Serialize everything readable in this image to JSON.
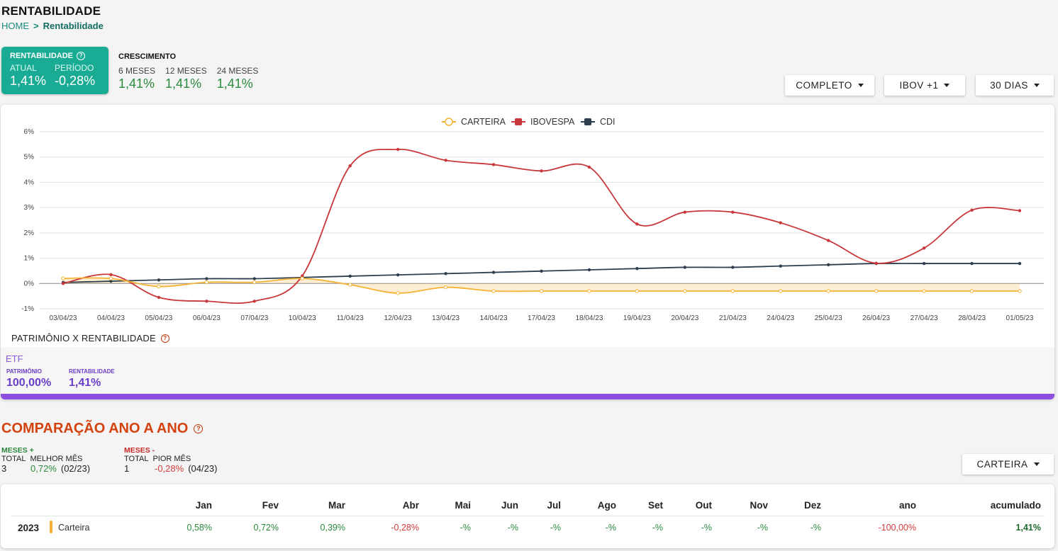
{
  "header": {
    "title": "RENTABILIDADE",
    "breadcrumb_home": "HOME",
    "breadcrumb_sep": ">",
    "breadcrumb_current": "Rentabilidade"
  },
  "rent_card": {
    "title": "RENTABILIDADE",
    "atual_label": "ATUAL",
    "atual_value": "1,41%",
    "periodo_label": "PERÍODO",
    "periodo_value": "-0,28%"
  },
  "growth": {
    "title": "CRESCIMENTO",
    "items": [
      {
        "label": "6 MESES",
        "value": "1,41%"
      },
      {
        "label": "12 MESES",
        "value": "1,41%"
      },
      {
        "label": "24 MESES",
        "value": "1,41%"
      }
    ]
  },
  "filters": {
    "period": "COMPLETO",
    "benchmark": "IBOV +1",
    "window": "30 DIAS"
  },
  "chart_data": {
    "type": "line",
    "x": [
      "03/04/23",
      "04/04/23",
      "05/04/23",
      "06/04/23",
      "07/04/23",
      "10/04/23",
      "11/04/23",
      "12/04/23",
      "13/04/23",
      "14/04/23",
      "17/04/23",
      "18/04/23",
      "19/04/23",
      "20/04/23",
      "21/04/23",
      "24/04/23",
      "25/04/23",
      "26/04/23",
      "27/04/23",
      "28/04/23",
      "01/05/23"
    ],
    "y_ticks": [
      "6%",
      "5%",
      "4%",
      "3%",
      "2%",
      "1%",
      "0%",
      "-1%"
    ],
    "ylim": [
      -1,
      6
    ],
    "legend_position": "top-center",
    "grid": true,
    "series": [
      {
        "name": "CARTEIRA",
        "color": "#f5b335",
        "values": [
          0.2,
          0.2,
          -0.12,
          0.05,
          0.05,
          0.2,
          -0.05,
          -0.38,
          -0.15,
          -0.3,
          -0.3,
          -0.3,
          -0.3,
          -0.3,
          -0.3,
          -0.3,
          -0.3,
          -0.3,
          -0.3,
          -0.3,
          -0.3
        ]
      },
      {
        "name": "IBOVESPA",
        "color": "#c8373a",
        "values": [
          0.0,
          0.35,
          -0.55,
          -0.7,
          -0.7,
          0.3,
          4.65,
          5.3,
          4.87,
          4.7,
          4.45,
          4.6,
          2.35,
          2.82,
          2.82,
          2.4,
          1.7,
          0.8,
          1.4,
          2.9,
          2.88
        ]
      },
      {
        "name": "CDI",
        "color": "#2d3e4e",
        "values": [
          0.04,
          0.09,
          0.14,
          0.19,
          0.19,
          0.24,
          0.29,
          0.34,
          0.39,
          0.44,
          0.49,
          0.54,
          0.59,
          0.64,
          0.64,
          0.69,
          0.74,
          0.79,
          0.79,
          0.79,
          0.79
        ]
      }
    ]
  },
  "patrimonio": {
    "title": "PATRIMÔNIO X RENTABILIDADE",
    "etf_label": "ETF",
    "patrimonio_label": "PATRIMÔNIO",
    "patrimonio_value": "100,00%",
    "rentabilidade_label": "RENTABILIDADE",
    "rentabilidade_value": "1,41%"
  },
  "comparacao": {
    "title": "COMPARAÇÃO ANO A ANO",
    "meses_pos": {
      "title": "MESES +",
      "total_label": "TOTAL",
      "total_value": "3",
      "best_label": "MELHOR MÊS",
      "best_value": "0,72%",
      "best_period": "(02/23)"
    },
    "meses_neg": {
      "title": "MESES -",
      "total_label": "TOTAL",
      "total_value": "1",
      "worst_label": "PIOR MÊS",
      "worst_value": "-0,28%",
      "worst_period": "(04/23)"
    },
    "series_select": "CARTEIRA"
  },
  "table": {
    "headers": [
      "Jan",
      "Fev",
      "Mar",
      "Abr",
      "Mai",
      "Jun",
      "Jul",
      "Ago",
      "Set",
      "Out",
      "Nov",
      "Dez",
      "ano",
      "acumulado"
    ],
    "row": {
      "year": "2023",
      "name": "Carteira",
      "values": [
        "0,58%",
        "0,72%",
        "0,39%",
        "-0,28%",
        "-%",
        "-%",
        "-%",
        "-%",
        "-%",
        "-%",
        "-%",
        "-%",
        "-100,00%",
        "1,41%"
      ]
    },
    "colors": {
      "positive": "#2b8a3e",
      "negative": "#d43c3c",
      "bold_positive": "#1e6b2c"
    }
  }
}
